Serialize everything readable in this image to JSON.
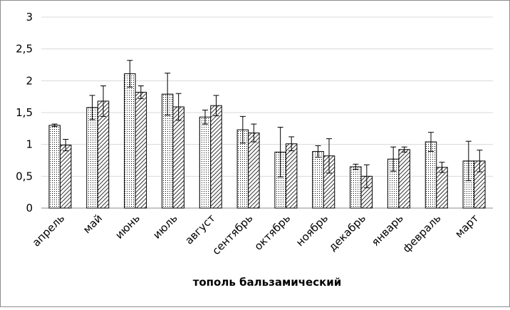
{
  "chart_data": {
    "type": "bar",
    "title": "",
    "xlabel": "тополь бальзамический",
    "ylabel": "",
    "ylim": [
      0,
      3
    ],
    "yticks": [
      "0",
      "0,5",
      "1",
      "1,5",
      "2",
      "2,5",
      "3"
    ],
    "yticks_values": [
      0,
      0.5,
      1,
      1.5,
      2,
      2.5,
      3
    ],
    "grid": true,
    "legend": "none",
    "categories": [
      "апрель",
      "май",
      "июнь",
      "июль",
      "август",
      "сентябрь",
      "октябрь",
      "ноябрь",
      "декабрь",
      "январь",
      "февраль",
      "март"
    ],
    "series": [
      {
        "pattern": "dots",
        "values": [
          1.3,
          1.58,
          2.11,
          1.79,
          1.43,
          1.23,
          0.88,
          0.89,
          0.65,
          0.77,
          1.04,
          0.74
        ],
        "errors": [
          0.02,
          0.19,
          0.21,
          0.33,
          0.11,
          0.21,
          0.39,
          0.09,
          0.04,
          0.19,
          0.15,
          0.31
        ]
      },
      {
        "pattern": "diagonal-hatch",
        "values": [
          0.99,
          1.68,
          1.82,
          1.59,
          1.61,
          1.18,
          1.01,
          0.82,
          0.5,
          0.92,
          0.64,
          0.74
        ],
        "errors": [
          0.09,
          0.24,
          0.1,
          0.21,
          0.16,
          0.14,
          0.11,
          0.27,
          0.18,
          0.04,
          0.08,
          0.17
        ]
      }
    ]
  },
  "colors": {
    "bar_stroke": "#000000",
    "grid": "#d9d9d9",
    "axis": "#8c8c8c",
    "frame": "#8c8c8c"
  }
}
